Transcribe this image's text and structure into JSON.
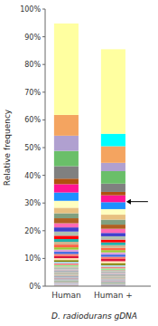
{
  "chart_data": {
    "type": "bar",
    "stacked": true,
    "xlabel": "D. radiodurans gDNA",
    "ylabel": "Relative frequency",
    "categories": [
      "Human",
      "Human +"
    ],
    "ylim": [
      0,
      1.0
    ],
    "yticks": [
      {
        "value": 0.0,
        "label": "0%"
      },
      {
        "value": 0.1,
        "label": "10%"
      },
      {
        "value": 0.2,
        "label": "20%"
      },
      {
        "value": 0.3,
        "label": "30%"
      },
      {
        "value": 0.4,
        "label": "40%"
      },
      {
        "value": 0.5,
        "label": "50%"
      },
      {
        "value": 0.6,
        "label": "60%"
      },
      {
        "value": 0.7,
        "label": "70%"
      },
      {
        "value": 0.8,
        "label": "80%"
      },
      {
        "value": 0.9,
        "label": "90%"
      },
      {
        "value": 1.0,
        "label": "100%"
      }
    ],
    "arrow_y": 0.305,
    "series": [
      {
        "values": [
          0.004,
          0.003
        ],
        "colors": [
          "#d8c8b8",
          "#c8b8d0"
        ]
      },
      {
        "values": [
          0.004,
          0.003
        ],
        "colors": [
          "#c8b8d0",
          "#b0b8c8"
        ]
      },
      {
        "values": [
          0.004,
          0.003
        ],
        "colors": [
          "#b0b8c8",
          "#c0b0a8"
        ]
      },
      {
        "values": [
          0.004,
          0.004
        ],
        "colors": [
          "#c0b0a8",
          "#a8c0a8"
        ]
      },
      {
        "values": [
          0.005,
          0.004
        ],
        "colors": [
          "#a8c0a8",
          "#b8b8c0"
        ]
      },
      {
        "values": [
          0.005,
          0.004
        ],
        "colors": [
          "#b8b8c0",
          "#c8a8b0"
        ]
      },
      {
        "values": [
          0.005,
          0.004
        ],
        "colors": [
          "#c8a8b0",
          "#a0b0c0"
        ]
      },
      {
        "values": [
          0.005,
          0.004
        ],
        "colors": [
          "#a0b0c0",
          "#d0b8a8"
        ]
      },
      {
        "values": [
          0.005,
          0.005
        ],
        "colors": [
          "#d0b8a8",
          "#b8c0b0"
        ]
      },
      {
        "values": [
          0.005,
          0.005
        ],
        "colors": [
          "#b8c0b0",
          "#c0b8a8"
        ]
      },
      {
        "values": [
          0.005,
          0.005
        ],
        "colors": [
          "#c0b8a8",
          "#a8b0b8"
        ]
      },
      {
        "values": [
          0.005,
          0.005
        ],
        "colors": [
          "#a8b0b8",
          "#d0b8c0"
        ]
      },
      {
        "values": [
          0.005,
          0.005
        ],
        "colors": [
          "#d0b8c0",
          "#b0c0b8"
        ]
      },
      {
        "values": [
          0.005,
          0.005
        ],
        "colors": [
          "#b0c0b8",
          "#c8b8a8"
        ]
      },
      {
        "values": [
          0.005,
          0.005
        ],
        "colors": [
          "#c8b8a8",
          "#90ee90"
        ]
      },
      {
        "values": [
          0.005,
          0.006
        ],
        "colors": [
          "#90ee90",
          "#f08080"
        ]
      },
      {
        "values": [
          0.006,
          0.006
        ],
        "colors": [
          "#f08080",
          "#add8e6"
        ]
      },
      {
        "values": [
          0.006,
          0.007
        ],
        "colors": [
          "#add8e6",
          "#808000"
        ]
      },
      {
        "values": [
          0.006,
          0.007
        ],
        "colors": [
          "#808000",
          "#ffe4b5"
        ]
      },
      {
        "values": [
          0.007,
          0.008
        ],
        "colors": [
          "#ffe4b5",
          "#dc143c"
        ]
      },
      {
        "values": [
          0.007,
          0.008
        ],
        "colors": [
          "#dc143c",
          "#fa8072"
        ]
      },
      {
        "values": [
          0.008,
          0.008
        ],
        "colors": [
          "#fa8072",
          "#4169e1"
        ]
      },
      {
        "values": [
          0.008,
          0.008
        ],
        "colors": [
          "#4169e1",
          "#dda0dd"
        ]
      },
      {
        "values": [
          0.008,
          0.008
        ],
        "colors": [
          "#dda0dd",
          "#9acd32"
        ]
      },
      {
        "values": [
          0.008,
          0.008
        ],
        "colors": [
          "#9acd32",
          "#ff6347"
        ]
      },
      {
        "values": [
          0.01,
          0.01
        ],
        "colors": [
          "#ff6347",
          "#d2b48c"
        ]
      },
      {
        "values": [
          0.01,
          0.01
        ],
        "colors": [
          "#d2b48c",
          "#20b2aa"
        ]
      },
      {
        "values": [
          0.01,
          0.01
        ],
        "colors": [
          "#20b2aa",
          "#ff0000"
        ]
      },
      {
        "values": [
          0.012,
          0.012
        ],
        "colors": [
          "#ff0000",
          "#b0c0b0"
        ]
      },
      {
        "values": [
          0.015,
          0.012
        ],
        "colors": [
          "#b0c0b0",
          "#4040cc"
        ]
      },
      {
        "values": [
          0.015,
          0.015
        ],
        "colors": [
          "#4040cc",
          "#ff69b4"
        ]
      },
      {
        "values": [
          0.015,
          0.015
        ],
        "colors": [
          "#ff69b4",
          "#b06020"
        ]
      },
      {
        "values": [
          0.018,
          0.018
        ],
        "colors": [
          "#b06020",
          "#80a080"
        ]
      },
      {
        "values": [
          0.018,
          0.018
        ],
        "colors": [
          "#80a080",
          "#e8c080"
        ]
      },
      {
        "values": [
          0.02,
          0.02
        ],
        "colors": [
          "#e8c080",
          "#ffffc0"
        ]
      },
      {
        "values": [
          0.025,
          0.025
        ],
        "colors": [
          "#ffffc0",
          "#1e90ff"
        ]
      },
      {
        "values": [
          0.03,
          0.025
        ],
        "colors": [
          "#1e90ff",
          "#ff1493"
        ]
      },
      {
        "values": [
          0.03,
          0.012
        ],
        "colors": [
          "#ff1493",
          "#b05010"
        ]
      },
      {
        "values": [
          0.02,
          0.03
        ],
        "colors": [
          "#b05010",
          "#808080"
        ]
      },
      {
        "values": [
          0.045,
          0.045
        ],
        "colors": [
          "#808080",
          "#6abf69"
        ]
      },
      {
        "values": [
          0.055,
          0.03
        ],
        "colors": [
          "#6abf69",
          "#b0a0d0"
        ]
      },
      {
        "values": [
          0.055,
          0.06
        ],
        "colors": [
          "#b0a0d0",
          "#f4a460"
        ]
      },
      {
        "values": [
          0.075,
          0.045
        ],
        "colors": [
          "#f4a460",
          "#00ffff"
        ]
      },
      {
        "values": [
          0.33,
          0.305
        ],
        "colors": [
          "#ffffa0",
          "#ffffa0"
        ]
      }
    ]
  }
}
